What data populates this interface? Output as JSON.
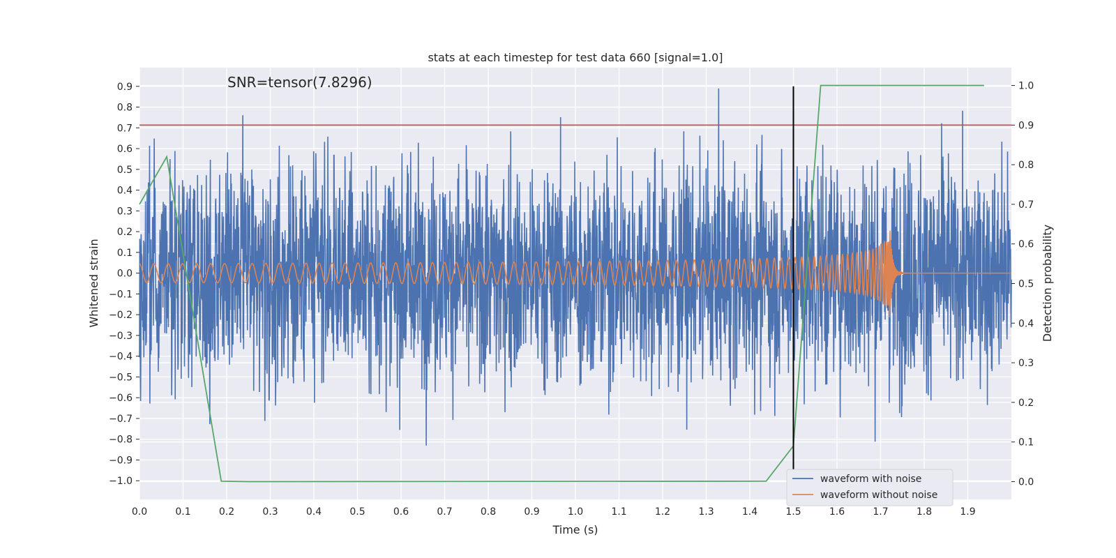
{
  "chart_data": {
    "type": "line",
    "title": "stats at each timestep for test data 660 [signal=1.0]",
    "annotation": "SNR=tensor(7.8296)",
    "xlabel": "Time (s)",
    "ylabel_left": "Whitened strain",
    "ylabel_right": "Detection probability",
    "xlim": [
      0.0,
      2.0
    ],
    "ylim_left": [
      -1.09,
      0.99
    ],
    "ylim_right": [
      -0.045,
      1.045
    ],
    "x_ticks": [
      "0.0",
      "0.1",
      "0.2",
      "0.3",
      "0.4",
      "0.5",
      "0.6",
      "0.7",
      "0.8",
      "0.9",
      "1.0",
      "1.1",
      "1.2",
      "1.3",
      "1.4",
      "1.5",
      "1.6",
      "1.7",
      "1.8",
      "1.9"
    ],
    "y_left_ticks": [
      "0.9",
      "0.8",
      "0.7",
      "0.6",
      "0.5",
      "0.4",
      "0.3",
      "0.2",
      "0.1",
      "0.0",
      "−0.1",
      "−0.2",
      "−0.3",
      "−0.4",
      "−0.5",
      "−0.6",
      "−0.7",
      "−0.8",
      "−0.9",
      "−1.0"
    ],
    "y_right_ticks": [
      "1.0",
      "0.9",
      "0.8",
      "0.7",
      "0.6",
      "0.5",
      "0.4",
      "0.3",
      "0.2",
      "0.1",
      "0.0"
    ],
    "threshold": {
      "value_right_axis": 0.9,
      "color": "#c44e52"
    },
    "vertical_marker": {
      "x": 1.5,
      "y_range_left": [
        -1.0,
        0.9
      ],
      "color": "#000000"
    },
    "series": [
      {
        "name": "waveform with noise",
        "color": "#4c72b0",
        "axis": "left",
        "description_values": {
          "x_range": [
            0.0,
            2.0
          ],
          "amplitude_min": -0.86,
          "amplitude_max": 0.9
        }
      },
      {
        "name": "waveform without noise",
        "color": "#dd8452",
        "axis": "left",
        "description_values": {
          "x_range": [
            0.0,
            2.0
          ],
          "amplitude_start": 0.045,
          "amplitude_peak": 0.27,
          "peak_time": 1.72,
          "freq_start_hz": 30
        }
      },
      {
        "name": "detection probability",
        "color": "#55a868",
        "axis": "right",
        "x": [
          0.0,
          0.0625,
          0.1875,
          0.25,
          1.4375,
          1.5,
          1.5625,
          1.9375
        ],
        "y": [
          0.7,
          0.82,
          0.001,
          0.0,
          0.001,
          0.09,
          1.0,
          1.0
        ]
      }
    ],
    "legend": {
      "placement": "lower-right",
      "entries": [
        "waveform with noise",
        "waveform without noise"
      ]
    }
  }
}
